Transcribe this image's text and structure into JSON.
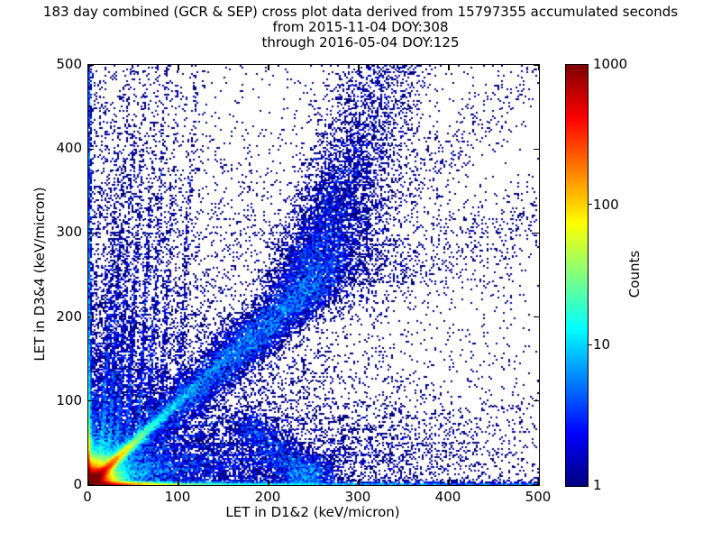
{
  "header": {
    "title": "183 day combined (GCR & SEP) cross plot data derived from 15797355 accumulated seconds",
    "subtitle1": "from 2015-11-04 DOY:308",
    "subtitle2": "through 2016-05-04 DOY:125"
  },
  "chart_data": {
    "type": "heatmap",
    "title": "183 day combined (GCR & SEP) cross plot data derived from 15797355 accumulated seconds",
    "subtitle1": "from 2015-11-04 DOY:308",
    "subtitle2": "through 2016-05-04 DOY:125",
    "xlabel": "LET in D1&2 (keV/micron)",
    "ylabel": "LET in D3&4 (keV/micron)",
    "xlim": [
      0,
      500
    ],
    "ylim": [
      0,
      500
    ],
    "xticks": [
      0,
      100,
      200,
      300,
      400,
      500
    ],
    "yticks": [
      0,
      100,
      200,
      300,
      400,
      500
    ],
    "grid": false,
    "colormap": "jet",
    "point_color_single_count": "#00008f",
    "colorbar": {
      "label": "Counts",
      "scale": "log",
      "min": 1,
      "max": 1000,
      "tick_labels": [
        "1000",
        "100",
        "10",
        "1"
      ],
      "tick_fractions_from_top": [
        0,
        0.3333,
        0.6667,
        1
      ]
    },
    "density_model": {
      "comment": "2D histogram intensity model (counts per 1x1 keV/micron cell) describing the observed features: hot origin core, hot x/y axis edge bands, bright y=x fragment line, upward-curving proton stopping band reaching top near x=330, mirrored weaker band below the diagonal, a spur diving to the x-axis near x=240, near-vertical ray striations at low LET, and sparse diffuse background.",
      "seed": 20151104,
      "corner": {
        "amp": 2600,
        "scale": 5.5
      },
      "cloud": {
        "amp": 13,
        "scale": 26
      },
      "bottom_edge": {
        "amp": 700,
        "scale1": 16,
        "amp2": 26,
        "scale2": 72,
        "tail": 2.4,
        "tailScale": 700,
        "sigma": 1.7
      },
      "left_edge": {
        "amp": 420,
        "scale1": 13,
        "amp2": 16,
        "scale2": 55,
        "tail": 1.9,
        "tailScale": 750,
        "sigma": 1.5
      },
      "diagonal": {
        "amp": 420,
        "scale1": 17,
        "sigma1": 2.6,
        "amp2": 13,
        "scale2": 62,
        "sigma2": 3.4,
        "amp3": 0.42,
        "scale3": 230,
        "sigma3": 7,
        "sigmaGrow": 0.02
      },
      "band_upper": {
        "off": 10,
        "knee": 230,
        "slope2": 0.333,
        "sigma0": 13,
        "sigmaGrow": 0.035,
        "base": 0.12,
        "peak": 0.75,
        "peakPos": 205,
        "peakWidth": 140,
        "fadeStart": 40,
        "fadeLen": 55
      },
      "band_lower": {
        "off": -10,
        "knee": 240,
        "slope2": 0.333,
        "sigma0": 13,
        "sigmaGrow": 0.035,
        "base": 0.035,
        "peak": 0.16,
        "peakPos": 205,
        "peakWidth": 120,
        "fadeStart": 40,
        "fadeLen": 55
      },
      "rays_vertical": {
        "sigma": 1.8,
        "tilt": 0.05,
        "list": [
          {
            "p": 14,
            "a": 1.7,
            "l": 110
          },
          {
            "p": 22,
            "a": 1.4,
            "l": 125
          },
          {
            "p": 31,
            "a": 1.15,
            "l": 135
          },
          {
            "p": 42,
            "a": 0.95,
            "l": 145
          },
          {
            "p": 55,
            "a": 0.75,
            "l": 160
          },
          {
            "p": 66,
            "a": 0.45,
            "l": 230
          },
          {
            "p": 80,
            "a": 0.32,
            "l": 220
          },
          {
            "p": 100,
            "a": 0.3,
            "l": 280
          }
        ]
      },
      "rays_horizontal": {
        "sigma": 1.8,
        "tilt": 0.05,
        "list": [
          {
            "p": 14,
            "a": 1.1,
            "l": 120
          },
          {
            "p": 22,
            "a": 0.9,
            "l": 140
          },
          {
            "p": 31,
            "a": 0.7,
            "l": 150
          },
          {
            "p": 42,
            "a": 0.55,
            "l": 150
          },
          {
            "p": 55,
            "a": 0.4,
            "l": 150
          },
          {
            "p": 70,
            "a": 0.25,
            "l": 160
          }
        ]
      },
      "spur": {
        "x0": 180,
        "y0": 68,
        "x1": 246,
        "y1": 10,
        "amp": 0.55,
        "sigma": 11,
        "blob": {
          "x": 239,
          "y": 14,
          "sx": 19,
          "sy": 11,
          "amp": 0.85
        }
      },
      "wedge": {
        "amp": 0.5,
        "xscale": 160,
        "yscale": 30
      },
      "background": {
        "base": 0.0016,
        "cornerAmp": 0.5,
        "cornerScale": 140,
        "bottomAmp": 0.05,
        "bottomYScale": 100,
        "bottomXScale": 300,
        "leftAmp": 0.05,
        "leftXScale": 85,
        "leftYScale": 400
      }
    }
  }
}
